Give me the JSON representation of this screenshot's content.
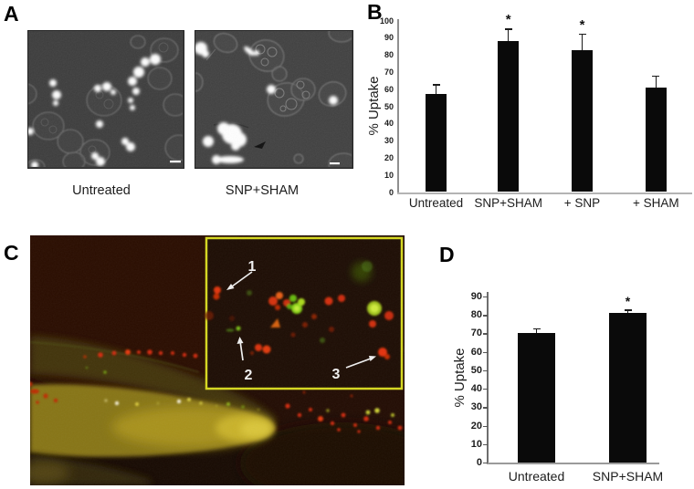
{
  "panels": {
    "a": {
      "label": "A",
      "captions": [
        "Untreated",
        "SNP+SHAM"
      ]
    },
    "b": {
      "label": "B"
    },
    "c": {
      "label": "C",
      "markers": [
        "1",
        "2",
        "3"
      ]
    },
    "d": {
      "label": "D"
    }
  },
  "chart_data": [
    {
      "id": "B",
      "type": "bar",
      "categories": [
        "Untreated",
        "SNP+SHAM",
        "+ SNP",
        "+ SHAM"
      ],
      "values": [
        57,
        88,
        83,
        61
      ],
      "errors": [
        5.5,
        7,
        9,
        6.5
      ],
      "significance": [
        "",
        "*",
        "*",
        ""
      ],
      "title": "",
      "xlabel": "",
      "ylabel": "% Uptake",
      "ylim": [
        0,
        100
      ],
      "ytick_step": 10,
      "bar_color": "#0a0a0a",
      "grid": false,
      "legend": null
    },
    {
      "id": "D",
      "type": "bar",
      "categories": [
        "Untreated",
        "SNP+SHAM"
      ],
      "values": [
        70,
        81
      ],
      "errors": [
        2.5,
        1.5
      ],
      "significance": [
        "",
        "*"
      ],
      "title": "",
      "xlabel": "",
      "ylabel": "% Uptake",
      "ylim": [
        0,
        90
      ],
      "ytick_step": 10,
      "bar_color": "#0a0a0a",
      "grid": false,
      "legend": null
    }
  ],
  "colors": {
    "inset_border_yellow": "#d6d81f",
    "fluorescence_red": "#d83008",
    "fluorescence_green": "#8ad414",
    "bar_black": "#0a0a0a"
  }
}
